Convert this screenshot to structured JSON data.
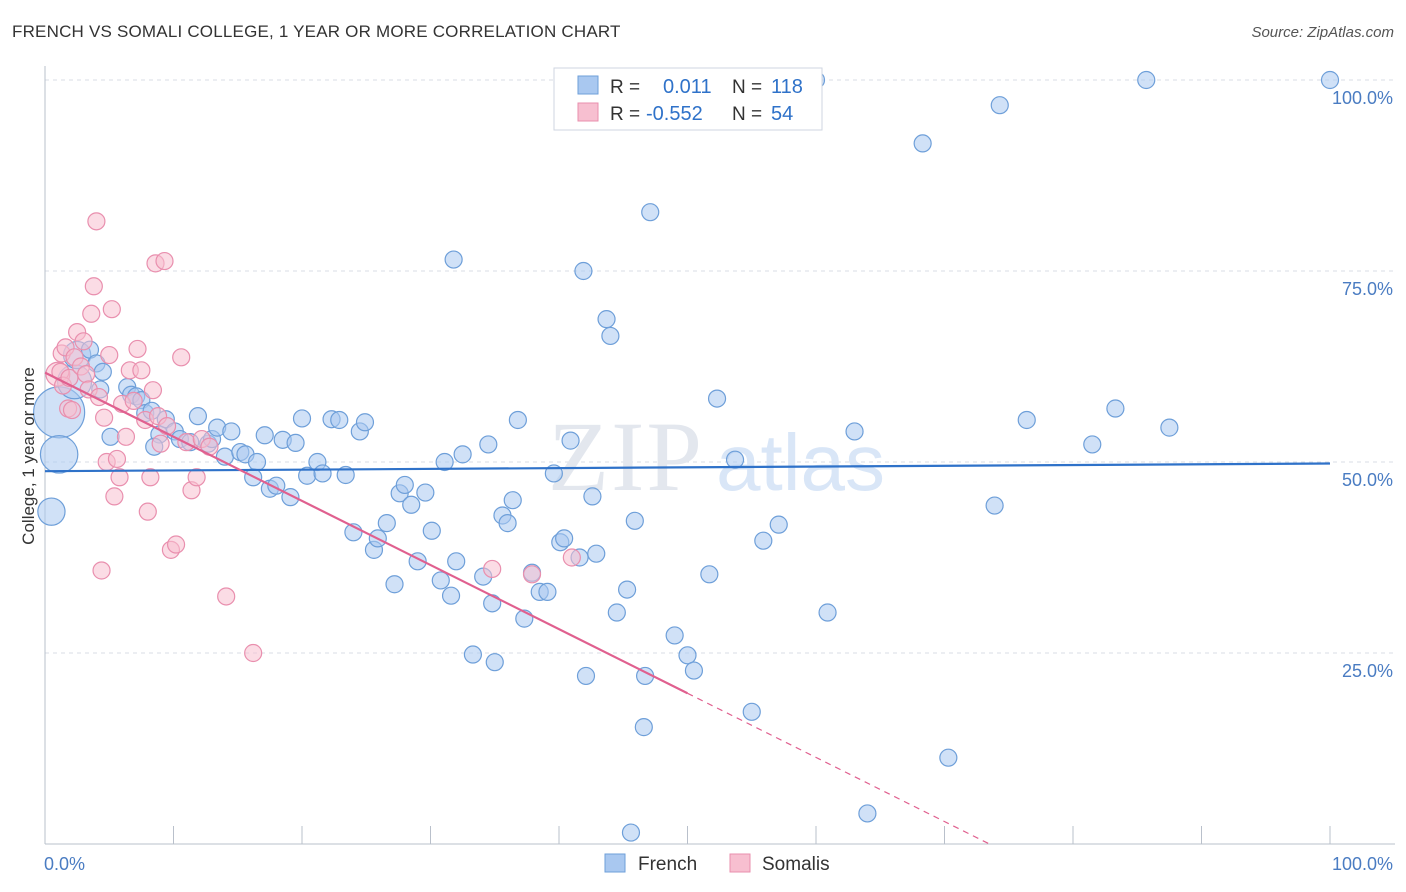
{
  "title": "FRENCH VS SOMALI COLLEGE, 1 YEAR OR MORE CORRELATION CHART",
  "source": "Source: ZipAtlas.com",
  "watermark": {
    "zip": "ZIP",
    "atlas": "atlas"
  },
  "colors": {
    "french_fill": "#a9c8f0",
    "french_stroke": "#6e9fd9",
    "french_line": "#2f72c9",
    "somali_fill": "#f7bfd0",
    "somali_stroke": "#e98fae",
    "somali_line": "#e0608f",
    "tick_text": "#4a7cc2",
    "grid": "#d8dde6"
  },
  "legend_top": [
    {
      "r_label": "R =",
      "r_value": "0.011",
      "n_label": "N =",
      "n_value": "118"
    },
    {
      "r_label": "R =",
      "r_value": "-0.552",
      "n_label": "N =",
      "n_value": "54"
    }
  ],
  "legend_bottom": [
    "French",
    "Somalis"
  ],
  "chart_data": {
    "type": "scatter",
    "title": "FRENCH VS SOMALI COLLEGE, 1 YEAR OR MORE CORRELATION CHART",
    "xlabel": "",
    "ylabel": "College, 1 year or more",
    "xlim": [
      0,
      100
    ],
    "ylim": [
      0,
      100
    ],
    "x_tick_labels": [
      "0.0%",
      "100.0%"
    ],
    "y_ticks": [
      25,
      50,
      75,
      100
    ],
    "y_tick_labels": [
      "25.0%",
      "50.0%",
      "75.0%",
      "100.0%"
    ],
    "grid": true,
    "legend_position": "top-center",
    "series": [
      {
        "name": "French",
        "r": 0.011,
        "n": 118,
        "trend": {
          "x": [
            0,
            100
          ],
          "y": [
            48.8,
            49.8
          ],
          "solid_to": 100
        },
        "points": [
          [
            1.1,
            56.5,
            3
          ],
          [
            1.1,
            51.0,
            2.2
          ],
          [
            0.5,
            43.5,
            1.6
          ],
          [
            2.3,
            60.5,
            2
          ],
          [
            2.5,
            64.0,
            1.6
          ],
          [
            3.5,
            64.7,
            1
          ],
          [
            4.0,
            62.9,
            1
          ],
          [
            4.3,
            59.5,
            1
          ],
          [
            4.5,
            61.8,
            1
          ],
          [
            5.1,
            53.3,
            1
          ],
          [
            6.4,
            59.8,
            1
          ],
          [
            6.7,
            58.8,
            1
          ],
          [
            7.1,
            58.6,
            1
          ],
          [
            7.5,
            58.1,
            1
          ],
          [
            7.8,
            56.4,
            1
          ],
          [
            8.3,
            56.7,
            1
          ],
          [
            8.9,
            53.6,
            1
          ],
          [
            9.4,
            55.6,
            1
          ],
          [
            10.1,
            54.0,
            1
          ],
          [
            10.5,
            53.0,
            1
          ],
          [
            11.3,
            52.6,
            1
          ],
          [
            11.9,
            56.0,
            1
          ],
          [
            12.7,
            52.4,
            1
          ],
          [
            13.0,
            53.0,
            1
          ],
          [
            13.4,
            54.5,
            1
          ],
          [
            14.0,
            50.7,
            1
          ],
          [
            14.5,
            54.0,
            1
          ],
          [
            15.2,
            51.3,
            1
          ],
          [
            15.6,
            51.0,
            1
          ],
          [
            16.2,
            48.0,
            1
          ],
          [
            16.5,
            50.0,
            1
          ],
          [
            17.1,
            53.5,
            1
          ],
          [
            17.5,
            46.5,
            1
          ],
          [
            18.0,
            46.9,
            1
          ],
          [
            18.5,
            52.9,
            1
          ],
          [
            19.1,
            45.4,
            1
          ],
          [
            19.5,
            52.5,
            1
          ],
          [
            20.0,
            55.7,
            1
          ],
          [
            20.4,
            48.2,
            1
          ],
          [
            21.2,
            50.0,
            1
          ],
          [
            21.6,
            48.5,
            1
          ],
          [
            22.3,
            55.6,
            1
          ],
          [
            22.9,
            55.5,
            1
          ],
          [
            23.4,
            48.3,
            1
          ],
          [
            24.0,
            40.8,
            1
          ],
          [
            24.5,
            54.0,
            1
          ],
          [
            24.9,
            55.2,
            1
          ],
          [
            25.6,
            38.5,
            1
          ],
          [
            25.9,
            40.0,
            1
          ],
          [
            26.6,
            42.0,
            1
          ],
          [
            27.2,
            34.0,
            1
          ],
          [
            27.6,
            45.9,
            1
          ],
          [
            28.0,
            47.0,
            1
          ],
          [
            28.5,
            44.4,
            1
          ],
          [
            29.0,
            37.0,
            1
          ],
          [
            29.6,
            46.0,
            1
          ],
          [
            30.1,
            41.0,
            1
          ],
          [
            30.8,
            34.5,
            1
          ],
          [
            31.1,
            50.0,
            1
          ],
          [
            31.6,
            32.5,
            1
          ],
          [
            32.0,
            37.0,
            1
          ],
          [
            32.5,
            51.0,
            1
          ],
          [
            33.3,
            24.8,
            1
          ],
          [
            34.1,
            35.0,
            1
          ],
          [
            34.5,
            52.3,
            1
          ],
          [
            34.8,
            31.5,
            1
          ],
          [
            31.8,
            76.5,
            1
          ],
          [
            35.6,
            43.0,
            1
          ],
          [
            36.0,
            42.0,
            1
          ],
          [
            36.4,
            45.0,
            1
          ],
          [
            36.8,
            55.5,
            1
          ],
          [
            37.3,
            29.5,
            1
          ],
          [
            37.9,
            35.5,
            1
          ],
          [
            38.5,
            33.0,
            1
          ],
          [
            39.1,
            33.0,
            1
          ],
          [
            39.6,
            48.5,
            1
          ],
          [
            40.1,
            39.5,
            1
          ],
          [
            40.4,
            40.0,
            1
          ],
          [
            40.9,
            52.8,
            1
          ],
          [
            41.6,
            37.5,
            1
          ],
          [
            42.1,
            22.0,
            1
          ],
          [
            41.9,
            75.0,
            1
          ],
          [
            42.6,
            45.5,
            1
          ],
          [
            42.9,
            38.0,
            1
          ],
          [
            43.7,
            68.7,
            1
          ],
          [
            44.0,
            66.5,
            1
          ],
          [
            44.5,
            30.3,
            1
          ],
          [
            45.3,
            33.3,
            1
          ],
          [
            45.9,
            42.3,
            1
          ],
          [
            46.7,
            22.0,
            1
          ],
          [
            46.6,
            15.3,
            1
          ],
          [
            47.1,
            82.7,
            1
          ],
          [
            49.0,
            27.3,
            1
          ],
          [
            50.0,
            24.7,
            1
          ],
          [
            50.5,
            22.7,
            1
          ],
          [
            51.7,
            35.3,
            1
          ],
          [
            52.3,
            58.3,
            1
          ],
          [
            53.7,
            50.3,
            1
          ],
          [
            55.0,
            17.3,
            1
          ],
          [
            55.9,
            39.7,
            1
          ],
          [
            57.1,
            41.8,
            1
          ],
          [
            60.0,
            100.0,
            1
          ],
          [
            60.9,
            30.3,
            1
          ],
          [
            63.0,
            54.0,
            1
          ],
          [
            64.0,
            4.0,
            1
          ],
          [
            68.3,
            91.7,
            1
          ],
          [
            70.3,
            11.3,
            1
          ],
          [
            73.9,
            44.3,
            1
          ],
          [
            74.3,
            96.7,
            1
          ],
          [
            76.4,
            55.5,
            1
          ],
          [
            81.5,
            52.3,
            1
          ],
          [
            83.3,
            57.0,
            1
          ],
          [
            85.7,
            100.0,
            1
          ],
          [
            87.5,
            54.5,
            1
          ],
          [
            100.0,
            100.0,
            1
          ],
          [
            45.6,
            1.5,
            1
          ],
          [
            35.0,
            23.8,
            1
          ],
          [
            8.5,
            52.0,
            1
          ]
        ]
      },
      {
        "name": "Somalis",
        "r": -0.552,
        "n": 54,
        "trend": {
          "x": [
            0,
            73.5
          ],
          "y": [
            61.7,
            0
          ],
          "solid_to": 50
        },
        "points": [
          [
            1.0,
            61.5,
            1.4
          ],
          [
            1.2,
            61.8,
            1
          ],
          [
            1.3,
            64.2,
            1
          ],
          [
            1.4,
            60.0,
            1
          ],
          [
            1.6,
            65.0,
            1
          ],
          [
            1.8,
            57.0,
            1
          ],
          [
            1.9,
            61.0,
            1
          ],
          [
            2.1,
            56.8,
            1
          ],
          [
            2.3,
            63.7,
            1
          ],
          [
            2.5,
            67.0,
            1
          ],
          [
            2.8,
            62.5,
            1
          ],
          [
            3.0,
            65.8,
            1
          ],
          [
            3.2,
            61.5,
            1
          ],
          [
            3.4,
            59.5,
            1
          ],
          [
            3.6,
            69.4,
            1
          ],
          [
            3.8,
            73.0,
            1
          ],
          [
            4.0,
            81.5,
            1
          ],
          [
            4.2,
            58.5,
            1
          ],
          [
            4.4,
            35.8,
            1
          ],
          [
            4.6,
            55.8,
            1
          ],
          [
            4.8,
            50.0,
            1
          ],
          [
            5.0,
            64.0,
            1
          ],
          [
            5.2,
            70.0,
            1
          ],
          [
            5.4,
            45.5,
            1
          ],
          [
            5.6,
            50.4,
            1
          ],
          [
            5.8,
            48.0,
            1
          ],
          [
            6.0,
            57.6,
            1
          ],
          [
            6.3,
            53.3,
            1
          ],
          [
            6.6,
            62.0,
            1
          ],
          [
            6.9,
            58.0,
            1
          ],
          [
            7.2,
            64.8,
            1
          ],
          [
            7.5,
            62.0,
            1
          ],
          [
            7.8,
            55.5,
            1
          ],
          [
            8.0,
            43.5,
            1
          ],
          [
            8.2,
            48.0,
            1
          ],
          [
            8.4,
            59.4,
            1
          ],
          [
            8.6,
            76.0,
            1
          ],
          [
            8.8,
            56.0,
            1
          ],
          [
            9.0,
            52.4,
            1
          ],
          [
            9.3,
            76.3,
            1
          ],
          [
            9.5,
            54.7,
            1
          ],
          [
            9.8,
            38.5,
            1
          ],
          [
            10.2,
            39.2,
            1
          ],
          [
            10.6,
            63.7,
            1
          ],
          [
            11.0,
            52.6,
            1
          ],
          [
            11.4,
            46.3,
            1
          ],
          [
            11.8,
            48.0,
            1
          ],
          [
            12.2,
            53.0,
            1
          ],
          [
            12.8,
            52.0,
            1
          ],
          [
            14.1,
            32.4,
            1
          ],
          [
            16.2,
            25.0,
            1
          ],
          [
            34.8,
            36.0,
            1
          ],
          [
            37.9,
            35.3,
            1
          ],
          [
            41.0,
            37.5,
            1
          ]
        ]
      }
    ]
  }
}
